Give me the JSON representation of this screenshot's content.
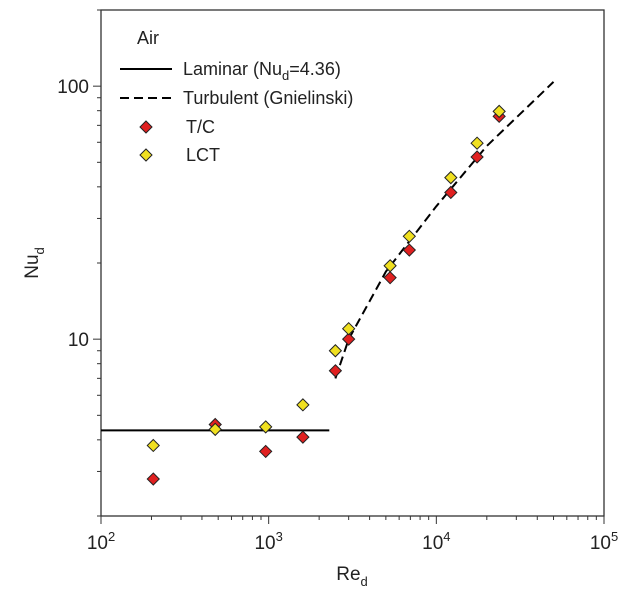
{
  "chart_data": {
    "type": "scatter",
    "x_scale": "log",
    "y_scale": "log",
    "xlim": [
      100,
      100000
    ],
    "ylim": [
      2,
      200
    ],
    "xlabel": {
      "main": "Re",
      "sub": "d"
    },
    "ylabel": {
      "main": "Nu",
      "sub": "d"
    },
    "x_ticks": [
      {
        "value": 100,
        "base": "10",
        "exp": "2"
      },
      {
        "value": 1000,
        "base": "10",
        "exp": "3"
      },
      {
        "value": 10000,
        "base": "10",
        "exp": "4"
      },
      {
        "value": 100000,
        "base": "10",
        "exp": "5"
      }
    ],
    "y_ticks": [
      {
        "value": 10,
        "label": "10"
      },
      {
        "value": 100,
        "label": "100"
      }
    ],
    "grid": false,
    "legend_title": "Air",
    "legend_position": "top-left",
    "series": [
      {
        "name": "Laminar (Nu_d=4.36)",
        "legend_label": {
          "pre": "Laminar (Nu",
          "sub": "d",
          "post": "=4.36)"
        },
        "kind": "line",
        "style": "solid",
        "color": "#000000",
        "points": [
          [
            100,
            4.36
          ],
          [
            2300,
            4.36
          ]
        ]
      },
      {
        "name": "Turbulent (Gnielinski)",
        "legend_label": {
          "pre": "Turbulent (Gnielinski)"
        },
        "kind": "line",
        "style": "dashed",
        "color": "#000000",
        "points": [
          [
            2500,
            7.0
          ],
          [
            3000,
            10.0
          ],
          [
            5000,
            18.5
          ],
          [
            10000,
            33.5
          ],
          [
            20000,
            58.0
          ],
          [
            50000,
            104.0
          ]
        ]
      },
      {
        "name": "T/C",
        "legend_label": {
          "pre": "T/C"
        },
        "kind": "marker",
        "marker": "diamond",
        "color": "#e02020",
        "points": [
          [
            205,
            2.8
          ],
          [
            480,
            4.6
          ],
          [
            960,
            3.6
          ],
          [
            1600,
            4.1
          ],
          [
            2500,
            7.5
          ],
          [
            3000,
            10.0
          ],
          [
            5300,
            17.5
          ],
          [
            6900,
            22.5
          ],
          [
            12200,
            38.0
          ],
          [
            17500,
            52.5
          ],
          [
            23700,
            76.0
          ]
        ]
      },
      {
        "name": "LCT",
        "legend_label": {
          "pre": "LCT"
        },
        "kind": "marker",
        "marker": "diamond",
        "color": "#f0e020",
        "points": [
          [
            205,
            3.8
          ],
          [
            480,
            4.4
          ],
          [
            960,
            4.5
          ],
          [
            1600,
            5.5
          ],
          [
            2500,
            9.0
          ],
          [
            3000,
            11.0
          ],
          [
            5300,
            19.5
          ],
          [
            6900,
            25.5
          ],
          [
            12200,
            43.5
          ],
          [
            17500,
            59.5
          ],
          [
            23700,
            79.5
          ]
        ]
      }
    ]
  }
}
